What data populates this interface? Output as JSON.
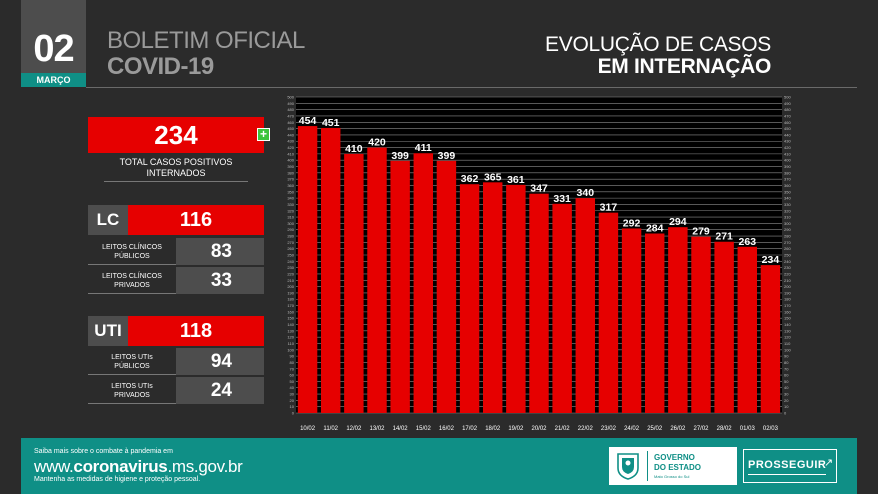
{
  "header": {
    "day": "02",
    "month": "MARÇO",
    "title_line1": "BOLETIM OFICIAL",
    "title_line2": "COVID-19",
    "chart_title_line1": "EVOLUÇÃO DE CASOS",
    "chart_title_line2": "EM INTERNAÇÃO"
  },
  "summary": {
    "total": "234",
    "plus_symbol": "+",
    "total_label_line1": "TOTAL CASOS POSITIVOS",
    "total_label_line2": "INTERNADOS",
    "lc": {
      "tag": "LC",
      "value": "116",
      "public_label_line1": "LEITOS CLÍNICOS",
      "public_label_line2": "PÚBLICOS",
      "public_value": "83",
      "private_label_line1": "LEITOS CLÍNICOS",
      "private_label_line2": "PRIVADOS",
      "private_value": "33"
    },
    "uti": {
      "tag": "UTI",
      "value": "118",
      "public_label_line1": "LEITOS UTIs",
      "public_label_line2": "PÚBLICOS",
      "public_value": "94",
      "private_label_line1": "LEITOS UTIs",
      "private_label_line2": "PRIVADOS",
      "private_value": "24"
    }
  },
  "chart_data": {
    "type": "bar",
    "title": "EVOLUÇÃO DE CASOS EM INTERNAÇÃO",
    "xlabel": "",
    "ylabel": "",
    "ylim": [
      0,
      500
    ],
    "y_tick_step": 10,
    "grid": true,
    "categories": [
      "10/02",
      "11/02",
      "12/02",
      "13/02",
      "14/02",
      "15/02",
      "16/02",
      "17/02",
      "18/02",
      "19/02",
      "20/02",
      "21/02",
      "22/02",
      "23/02",
      "24/02",
      "25/02",
      "26/02",
      "27/02",
      "28/02",
      "01/03",
      "02/03"
    ],
    "values": [
      454,
      451,
      410,
      420,
      399,
      411,
      399,
      362,
      365,
      361,
      347,
      331,
      340,
      317,
      292,
      284,
      294,
      279,
      271,
      263,
      234
    ],
    "bar_color": "#e60000",
    "plot_background": "#000000",
    "grid_color": "#8c8c8c"
  },
  "footer": {
    "line1": "Saiba mais sobre o combate à pandemia em",
    "url_prefix": "www.",
    "url_bold": "coronavirus",
    "url_suffix": ".ms.gov.br",
    "line3": "Mantenha as medidas de higiene e proteção pessoal.",
    "gov_line1": "GOVERNO",
    "gov_line2": "DO ESTADO",
    "gov_line3": "Mato Grosso do Sul",
    "prosseguir": "PROSSEGUIR"
  }
}
